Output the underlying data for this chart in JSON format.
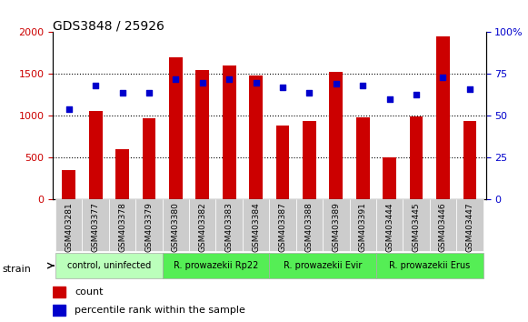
{
  "title": "GDS3848 / 25926",
  "categories": [
    "GSM403281",
    "GSM403377",
    "GSM403378",
    "GSM403379",
    "GSM403380",
    "GSM403382",
    "GSM403383",
    "GSM403384",
    "GSM403387",
    "GSM403388",
    "GSM403389",
    "GSM403391",
    "GSM403444",
    "GSM403445",
    "GSM403446",
    "GSM403447"
  ],
  "counts": [
    350,
    1060,
    600,
    970,
    1700,
    1550,
    1600,
    1480,
    880,
    940,
    1530,
    980,
    500,
    990,
    1950,
    940
  ],
  "percentiles": [
    54,
    68,
    64,
    64,
    72,
    70,
    72,
    70,
    67,
    64,
    69,
    68,
    60,
    63,
    73,
    66
  ],
  "strain_groups": [
    {
      "label": "control, uninfected",
      "start": 0,
      "end": 3,
      "color": "#ccffcc"
    },
    {
      "label": "R. prowazekii Rp22",
      "start": 4,
      "end": 7,
      "color": "#66ff66"
    },
    {
      "label": "R. prowazekii Evir",
      "start": 8,
      "end": 11,
      "color": "#66ff66"
    },
    {
      "label": "R. prowazekii Erus",
      "start": 12,
      "end": 15,
      "color": "#66ff66"
    }
  ],
  "bar_color": "#cc0000",
  "dot_color": "#0000cc",
  "left_axis_color": "#cc0000",
  "right_axis_color": "#0000cc",
  "ylim_left": [
    0,
    2000
  ],
  "ylim_right": [
    0,
    100
  ],
  "yticks_left": [
    0,
    500,
    1000,
    1500,
    2000
  ],
  "ytick_labels_left": [
    "0",
    "500",
    "1000",
    "1500",
    "2000"
  ],
  "yticks_right": [
    0,
    25,
    50,
    75,
    100
  ],
  "ytick_labels_right": [
    "0",
    "25",
    "50",
    "75",
    "100%"
  ],
  "legend_count_label": "count",
  "legend_pct_label": "percentile rank within the sample",
  "strain_label": "strain",
  "bg_color": "#ffffff",
  "plot_bg_color": "#ffffff",
  "grid_color": "#000000",
  "strain_row_bg": "#dddddd",
  "group_colors": [
    "#ccffcc",
    "#66ff66",
    "#66ff66",
    "#66ff66"
  ]
}
